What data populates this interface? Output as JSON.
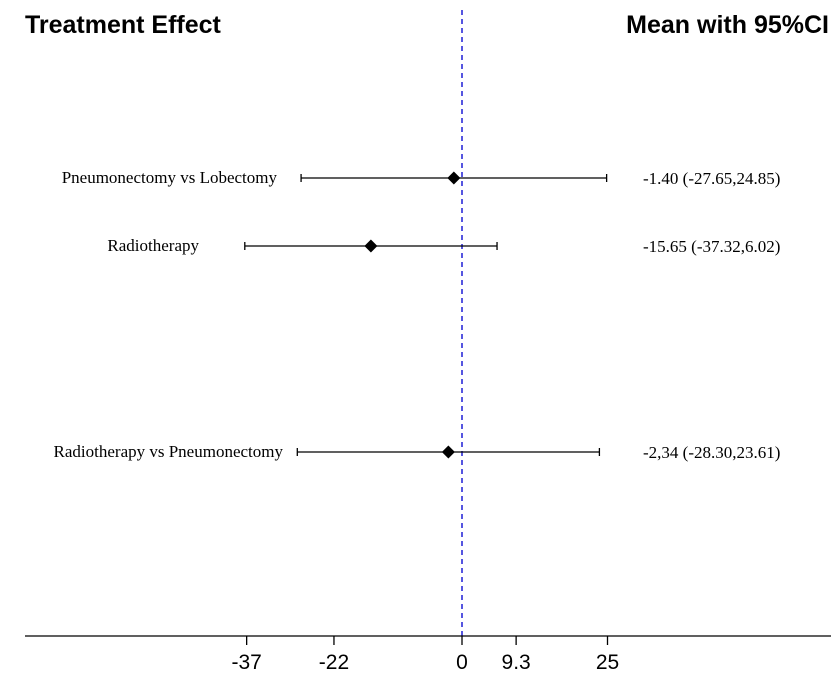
{
  "chart_data": {
    "type": "forest",
    "headers": {
      "left": "Treatment Effect",
      "right": "Mean with 95%CI"
    },
    "rows": [
      {
        "label": "Pneumonectomy vs Lobectomy",
        "mean": -1.4,
        "lower": -27.65,
        "upper": 24.85,
        "ci_text": "-1.40 (-27.65,24.85)"
      },
      {
        "label": "Radiotherapy",
        "mean": -15.65,
        "lower": -37.32,
        "upper": 6.02,
        "ci_text": "-15.65 (-37.32,6.02)"
      },
      {
        "label": "Radiotherapy vs Pneumonectomy",
        "mean": -2.34,
        "lower": -28.3,
        "upper": 23.61,
        "ci_text": "-2,34 (-28.30,23.61)"
      }
    ],
    "x_ticks": [
      {
        "value": -37,
        "label": "-37"
      },
      {
        "value": -22,
        "label": "-22"
      },
      {
        "value": 0,
        "label": "0"
      },
      {
        "value": 9.3,
        "label": "9.3"
      },
      {
        "value": 25,
        "label": "25"
      }
    ],
    "reference_line": 0,
    "colors": {
      "reference_line": "#1f1fd6",
      "marks": "#000000"
    }
  }
}
